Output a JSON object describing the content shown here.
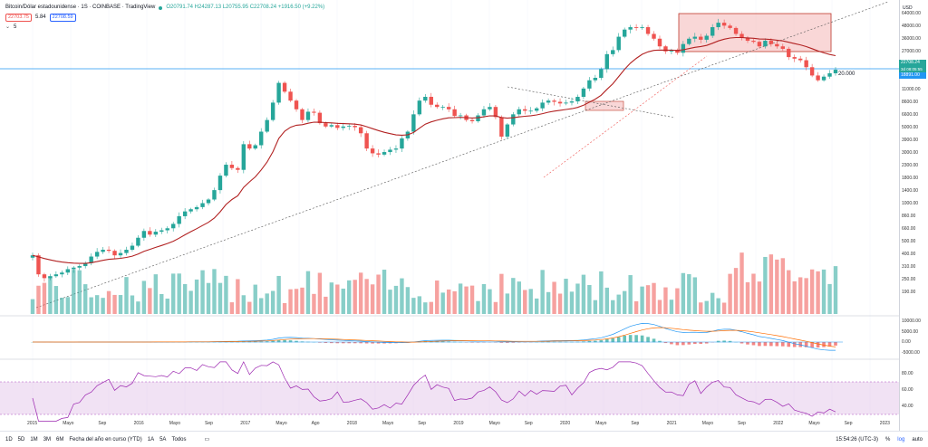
{
  "header": {
    "symbol": "Bitcoin/Dólar estadounidense · 1S · COINBASE · TradingView",
    "ohlc": "O20791.74 H24287.13 L20755.95 C22708.24 +1916.50 (+9.22%)",
    "bid": "22703.75",
    "spread": "5.84",
    "ask": "22708.59",
    "indicator_count": "5"
  },
  "price_axis": {
    "currency": "USD",
    "labels": [
      "64000.00",
      "48000.00",
      "36000.00",
      "27000.00",
      "20000.00",
      "14000.00",
      "11000.00",
      "8600.00",
      "6600.00",
      "5000.00",
      "3900.00",
      "3000.00",
      "2300.00",
      "1800.00",
      "1400.00",
      "1000.00",
      "860.00",
      "660.00",
      "500.00",
      "400.00",
      "310.00",
      "250.00",
      "190.00"
    ],
    "current_price": "22708.24",
    "countdown": "3d 08:05:55",
    "line_price": "18891.00",
    "line_label": "20.000"
  },
  "macd_axis": [
    "10000.00",
    "5000.00",
    "0.00",
    "-5000.00"
  ],
  "rsi_axis": [
    "80.00",
    "60.00",
    "40.00"
  ],
  "time_axis": [
    "2015",
    "Mayo",
    "Sep",
    "2016",
    "Mayo",
    "Sep",
    "2017",
    "Mayo",
    "Ago",
    "2018",
    "Mayo",
    "Sep",
    "2019",
    "Mayo",
    "Sep",
    "2020",
    "Mayo",
    "Sep",
    "2021",
    "Mayo",
    "Sep",
    "2022",
    "Mayo",
    "Sep",
    "2023"
  ],
  "bottom_bar": {
    "timeframes": [
      "1D",
      "5D",
      "1M",
      "3M",
      "6M",
      "Fecha del año en curso (YTD)",
      "1A",
      "5A",
      "Todos"
    ],
    "clock": "15:54:26 (UTC-3)",
    "options": [
      "%",
      "log",
      "auto"
    ]
  },
  "colors": {
    "up": "#26a69a",
    "down": "#ef5350",
    "ema": "#b22222",
    "rsi": "#9c27b0",
    "macd": "#2196f3",
    "signal": "#ff6d00",
    "line_blue": "#2196f3"
  },
  "chart_data": {
    "type": "candlestick",
    "weekly_closes": [
      380,
      250,
      230,
      240,
      250,
      260,
      280,
      290,
      300,
      320,
      370,
      410,
      430,
      420,
      380,
      400,
      430,
      470,
      560,
      650,
      600,
      640,
      660,
      690,
      760,
      900,
      1000,
      1050,
      1100,
      1200,
      1300,
      1600,
      2200,
      2800,
      2600,
      2500,
      4400,
      4000,
      4300,
      5800,
      7500,
      11000,
      17000,
      14000,
      11500,
      9500,
      7500,
      9000,
      8800,
      7000,
      6500,
      6700,
      6300,
      6500,
      6600,
      6400,
      5600,
      4000,
      3600,
      3500,
      3700,
      3900,
      4000,
      5000,
      5800,
      8500,
      11500,
      12500,
      10500,
      10000,
      10000,
      9500,
      8200,
      8300,
      7500,
      7300,
      8300,
      9500,
      10000,
      8000,
      5200,
      6800,
      8500,
      9500,
      9200,
      9200,
      9700,
      11000,
      11500,
      11200,
      10800,
      11000,
      11300,
      12500,
      15000,
      18000,
      19000,
      23000,
      32000,
      35000,
      47000,
      55000,
      58000,
      57000,
      58000,
      50000,
      45000,
      38000,
      34000,
      35000,
      33000,
      40000,
      45000,
      47000,
      44000,
      48000,
      58000,
      64000,
      60000,
      57000,
      50000,
      46000,
      43000,
      42000,
      38000,
      43000,
      40000,
      38000,
      36000,
      30000,
      29000,
      28000,
      24000,
      20000,
      18000,
      19500,
      21000,
      22708
    ],
    "ylim": [
      120,
      90000
    ],
    "xrange": [
      "2014-11",
      "2023-02"
    ],
    "volume_note": "Volume histogram in lower part of price pane",
    "indicators": [
      "EMA",
      "MACD",
      "RSI"
    ]
  }
}
